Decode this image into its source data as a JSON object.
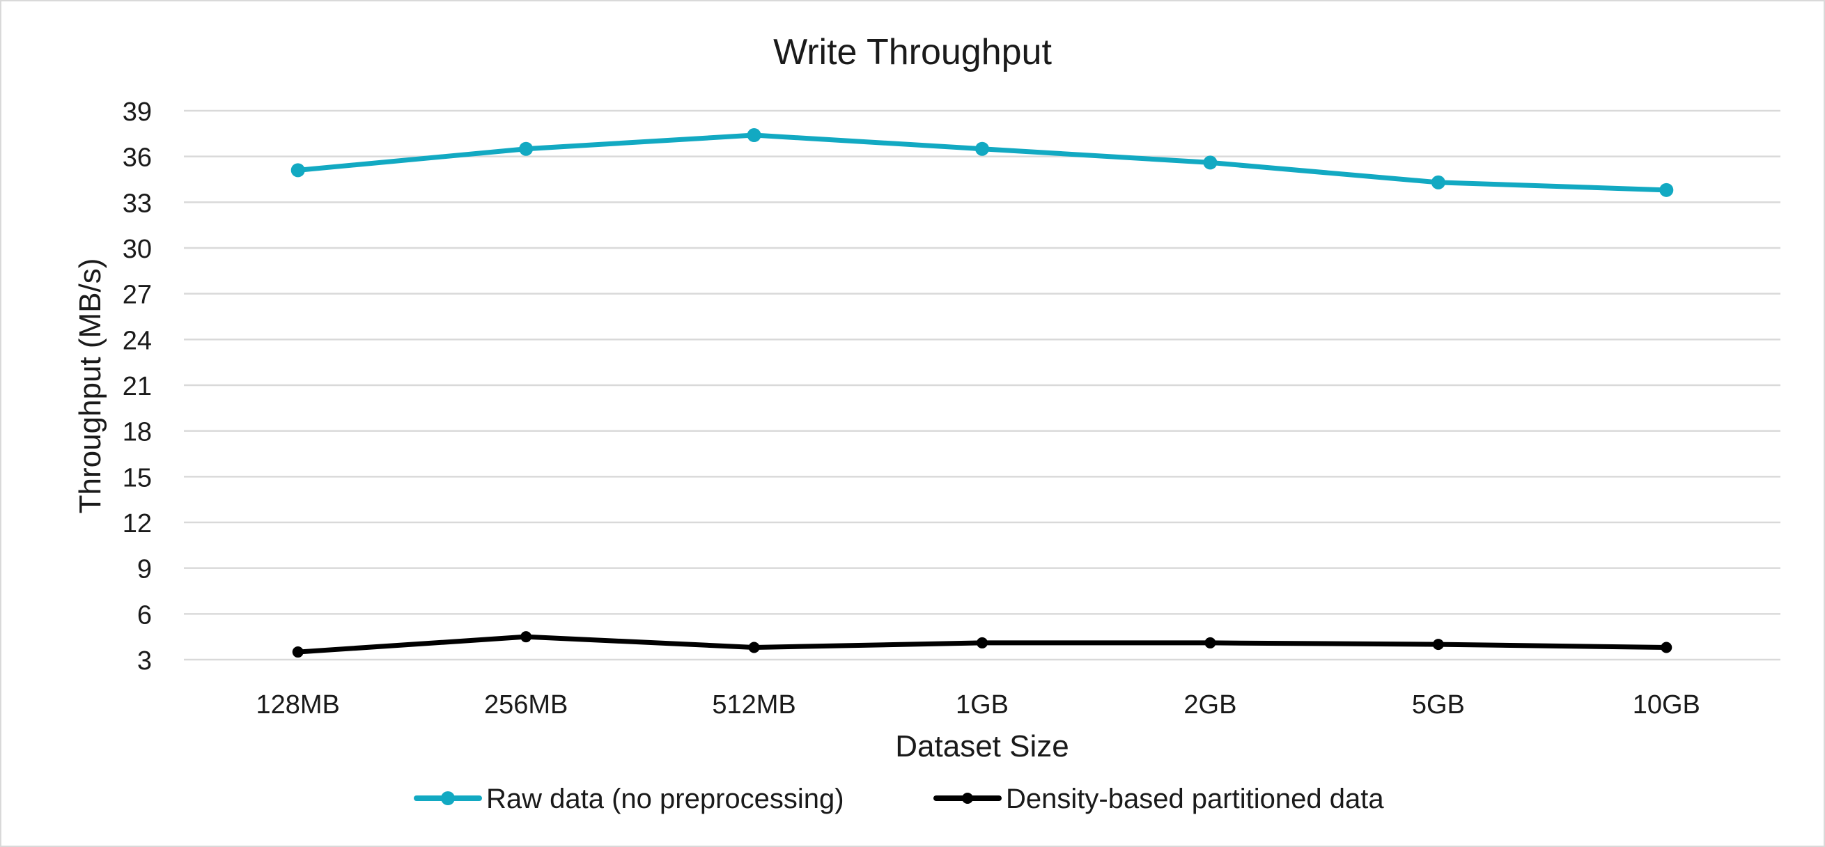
{
  "chart_data": {
    "type": "line",
    "title": "Write Throughput",
    "xlabel": "Dataset Size",
    "ylabel": "Throughput (MB/s)",
    "categories": [
      "128MB",
      "256MB",
      "512MB",
      "1GB",
      "2GB",
      "5GB",
      "10GB"
    ],
    "ylim": [
      3,
      39
    ],
    "yticks": [
      3,
      6,
      9,
      12,
      15,
      18,
      21,
      24,
      27,
      30,
      33,
      36,
      39
    ],
    "grid": true,
    "legend_position": "bottom",
    "series": [
      {
        "name": "Raw data (no preprocessing)",
        "color": "#12A9C2",
        "values": [
          35.1,
          36.5,
          37.4,
          36.5,
          35.6,
          34.3,
          33.8
        ]
      },
      {
        "name": "Density-based partitioned data",
        "color": "#000000",
        "values": [
          3.5,
          4.5,
          3.8,
          4.1,
          4.1,
          4.0,
          3.8
        ]
      }
    ]
  }
}
